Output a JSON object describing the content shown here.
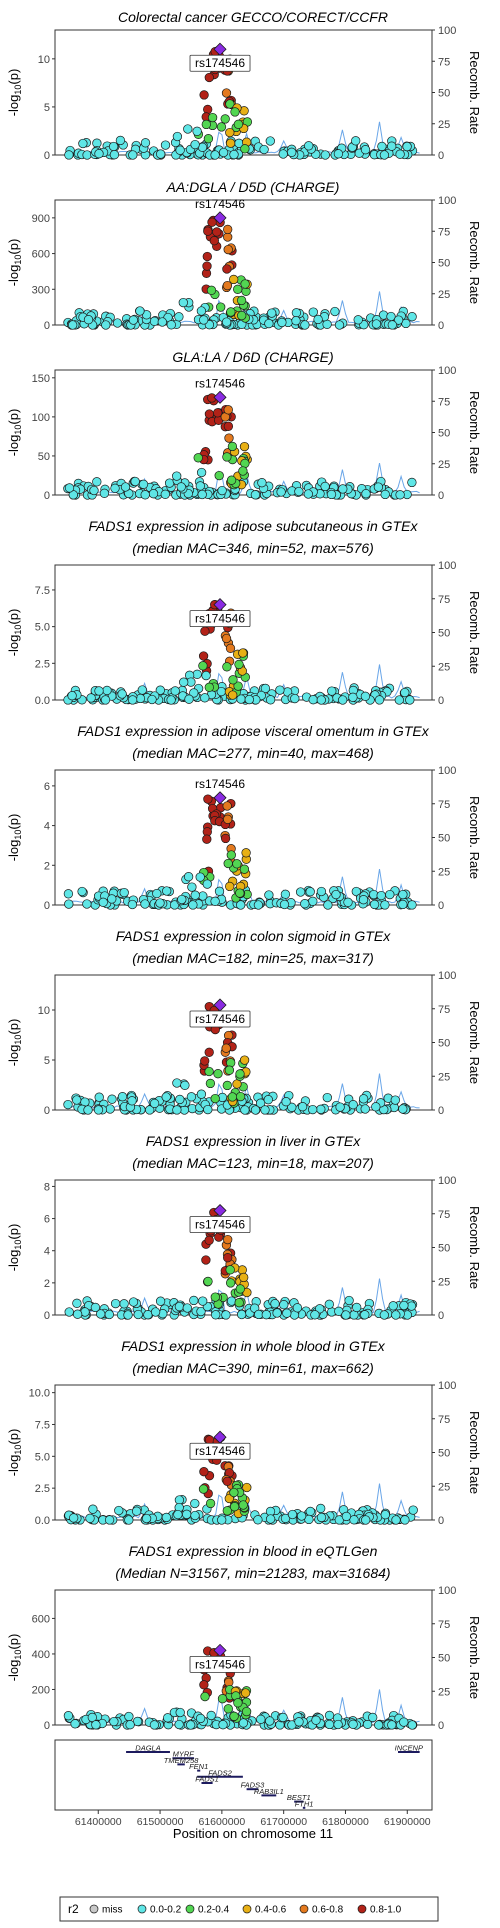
{
  "labels": {
    "y_axis": "-log",
    "y_axis_sub": "10",
    "y_axis_p": "(p)",
    "y2_axis": "Recomb. Rate",
    "x_axis": "Position on chromosome 11",
    "lead_snp": "rs174546",
    "legend_title": "r2"
  },
  "legend": [
    {
      "label": "miss",
      "color": "#c8c8c8"
    },
    {
      "label": "0.0-0.2",
      "color": "#5fe6e6"
    },
    {
      "label": "0.2-0.4",
      "color": "#52d652"
    },
    {
      "label": "0.4-0.6",
      "color": "#e8b015"
    },
    {
      "label": "0.6-0.8",
      "color": "#e3791e"
    },
    {
      "label": "0.8-1.0",
      "color": "#b22218"
    }
  ],
  "lead_color": "#8a2be2",
  "recomb_color": "#6aa6e8",
  "x_ticks": [
    "61400000",
    "61500000",
    "61600000",
    "61700000",
    "61800000",
    "61900000"
  ],
  "recomb_ticks": [
    "0",
    "25",
    "50",
    "75",
    "100"
  ],
  "chart_data": [
    {
      "type": "scatter",
      "title": [
        "Colorectal cancer GECCO/CORECT/CCFR"
      ],
      "y_ticks": [
        "0",
        "5",
        "10"
      ],
      "ylim": [
        0,
        13
      ],
      "peak": 11.0,
      "recomb_max": 100
    },
    {
      "type": "scatter",
      "title": [
        "AA:DGLA / D5D (CHARGE)"
      ],
      "y_ticks": [
        "0",
        "300",
        "600",
        "900"
      ],
      "ylim": [
        0,
        1050
      ],
      "peak": 900,
      "recomb_max": 100
    },
    {
      "type": "scatter",
      "title": [
        "GLA:LA / D6D (CHARGE)"
      ],
      "y_ticks": [
        "0",
        "50",
        "100",
        "150"
      ],
      "ylim": [
        0,
        160
      ],
      "peak": 125,
      "recomb_max": 100
    },
    {
      "type": "scatter",
      "title": [
        "FADS1 expression in adipose subcutaneous in GTEx",
        "(median MAC=346, min=52, max=576)"
      ],
      "y_ticks": [
        "0.0",
        "2.5",
        "5.0",
        "7.5"
      ],
      "ylim": [
        0,
        9.2
      ],
      "peak": 6.5,
      "recomb_max": 100
    },
    {
      "type": "scatter",
      "title": [
        "FADS1 expression in adipose visceral omentum in GTEx",
        "(median MAC=277, min=40, max=468)"
      ],
      "y_ticks": [
        "0",
        "2",
        "4",
        "6"
      ],
      "ylim": [
        0,
        6.8
      ],
      "peak": 5.4,
      "recomb_max": 100
    },
    {
      "type": "scatter",
      "title": [
        "FADS1 expression in colon sigmoid in GTEx",
        "(median MAC=182, min=25, max=317)"
      ],
      "y_ticks": [
        "0",
        "5",
        "10"
      ],
      "ylim": [
        0,
        13.5
      ],
      "peak": 10.5,
      "recomb_max": 100
    },
    {
      "type": "scatter",
      "title": [
        "FADS1 expression in liver in GTEx",
        "(median MAC=123, min=18, max=207)"
      ],
      "y_ticks": [
        "0",
        "2",
        "4",
        "6",
        "8"
      ],
      "ylim": [
        0,
        8.4
      ],
      "peak": 6.5,
      "recomb_max": 100
    },
    {
      "type": "scatter",
      "title": [
        "FADS1 expression in whole blood in GTEx",
        "(median MAC=390, min=61, max=662)"
      ],
      "y_ticks": [
        "0.0",
        "2.5",
        "5.0",
        "7.5",
        "10.0"
      ],
      "ylim": [
        0,
        10.6
      ],
      "peak": 6.5,
      "recomb_max": 100
    },
    {
      "type": "scatter",
      "title": [
        "FADS1 expression in blood in eQTLGen",
        "(Median N=31567, min=21283, max=31684)"
      ],
      "y_ticks": [
        "0",
        "200",
        "400",
        "600"
      ],
      "ylim": [
        0,
        760
      ],
      "peak": 420,
      "recomb_max": 100
    }
  ],
  "genes": [
    {
      "name": "DAGLA",
      "start": 61445000,
      "end": 61516000,
      "row": 0
    },
    {
      "name": "INCENP",
      "start": 61885000,
      "end": 61920000,
      "row": 0
    },
    {
      "name": "MYRF",
      "start": 61520000,
      "end": 61555000,
      "row": 1
    },
    {
      "name": "TMEM258",
      "start": 61528000,
      "end": 61540000,
      "row": 2
    },
    {
      "name": "FEN1",
      "start": 61560000,
      "end": 61565000,
      "row": 3
    },
    {
      "name": "FADS2",
      "start": 61560000,
      "end": 61634000,
      "row": 4
    },
    {
      "name": "FADS1",
      "start": 61567000,
      "end": 61585000,
      "row": 5
    },
    {
      "name": "FADS3",
      "start": 61640000,
      "end": 61659000,
      "row": 6
    },
    {
      "name": "RAB3IL1",
      "start": 61664000,
      "end": 61688000,
      "row": 7
    },
    {
      "name": "BEST1",
      "start": 61717000,
      "end": 61732000,
      "row": 8
    },
    {
      "name": "FTH1",
      "start": 61731000,
      "end": 61735000,
      "row": 9
    }
  ]
}
